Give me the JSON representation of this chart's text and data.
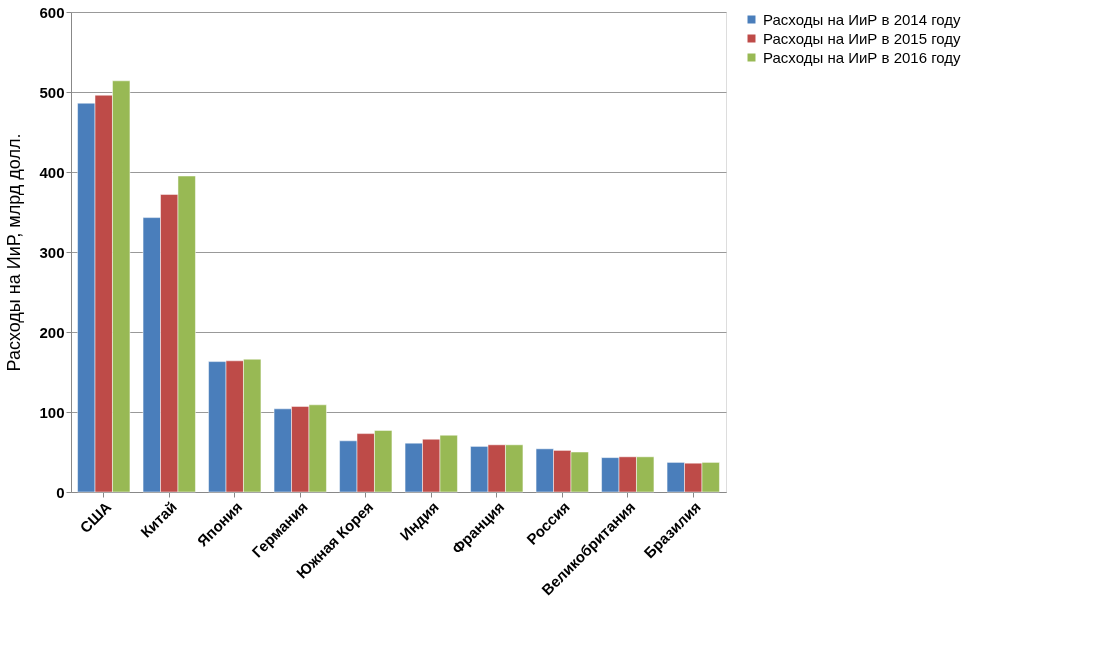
{
  "chart_data": {
    "type": "bar",
    "ylabel": "Расходы на ИиР, млрд долл.",
    "categories": [
      "США",
      "Китай",
      "Япония",
      "Германия",
      "Южная Корея",
      "Индия",
      "Франция",
      "Россия",
      "Великобритания",
      "Бразилия"
    ],
    "series": [
      {
        "name": "Расходы на ИиР в 2014 году",
        "color": "#4a7ebb",
        "values": [
          486,
          343,
          163,
          104,
          64,
          61,
          57,
          54,
          43,
          37
        ]
      },
      {
        "name": "Расходы на ИиР в 2015 году",
        "color": "#be4b48",
        "values": [
          496,
          372,
          164,
          107,
          73,
          66,
          59,
          52,
          44,
          36
        ]
      },
      {
        "name": "Расходы на ИиР в 2016 году",
        "color": "#98b954",
        "values": [
          514,
          395,
          166,
          109,
          77,
          71,
          59,
          50,
          44,
          37
        ]
      }
    ],
    "ylim": [
      0,
      600
    ],
    "yticks": [
      0,
      100,
      200,
      300,
      400,
      500,
      600
    ],
    "grid": "y",
    "legend": "top right"
  }
}
